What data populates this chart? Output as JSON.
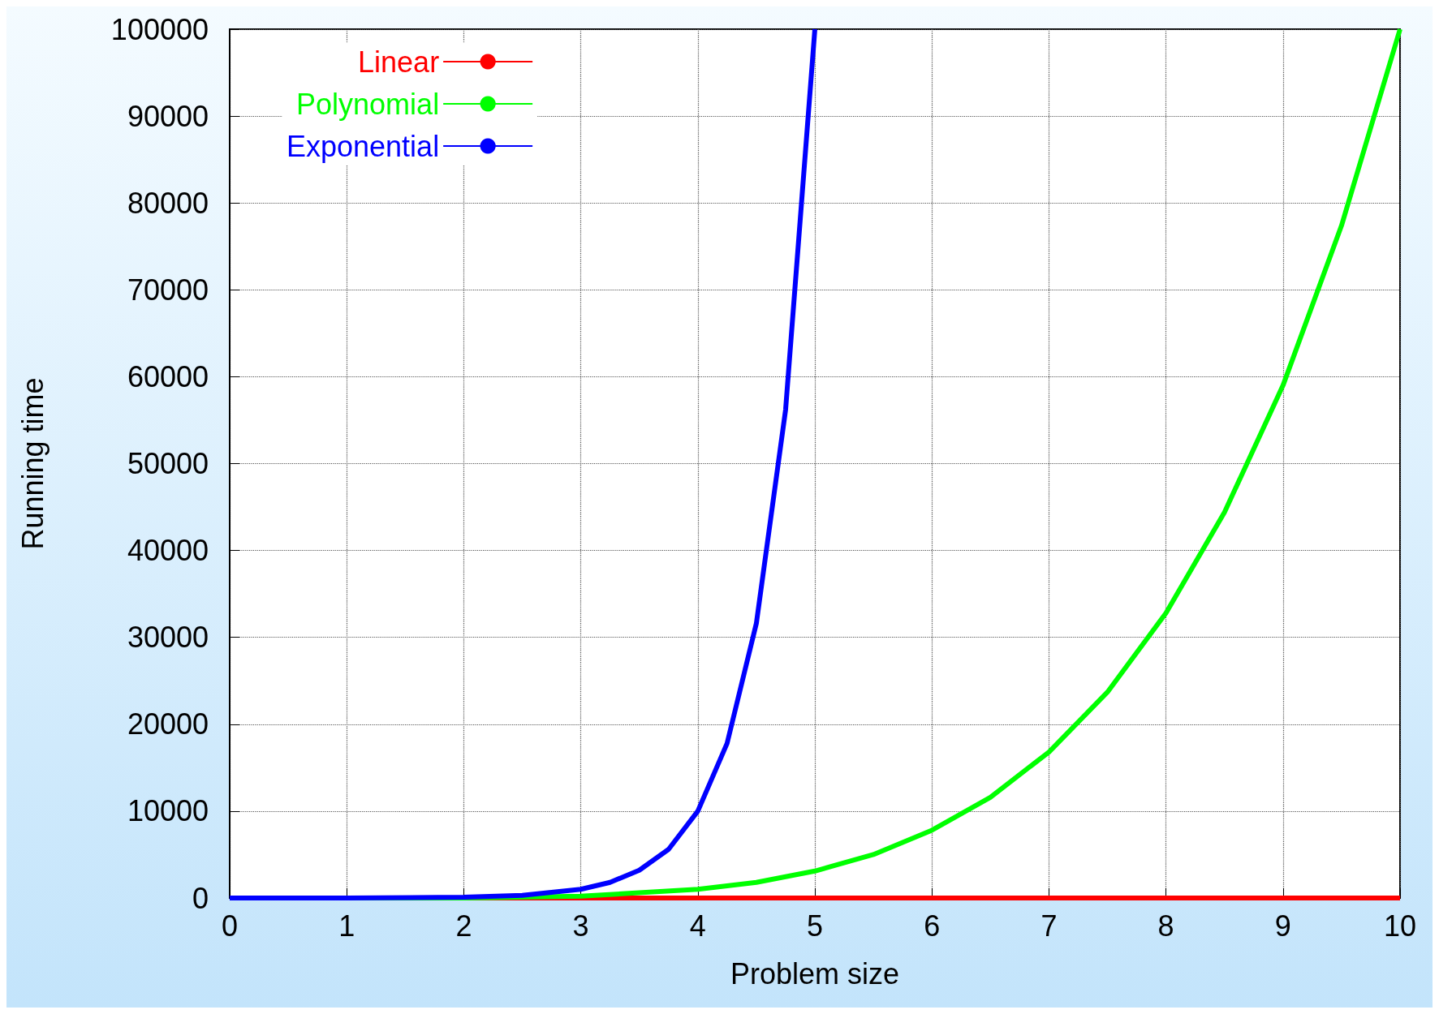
{
  "chart_data": {
    "type": "line",
    "xlabel": "Problem size",
    "ylabel": "Running time",
    "xlim": [
      0,
      10
    ],
    "ylim": [
      0,
      100000
    ],
    "xticks": [
      0,
      1,
      2,
      3,
      4,
      5,
      6,
      7,
      8,
      9,
      10
    ],
    "yticks": [
      0,
      10000,
      20000,
      30000,
      40000,
      50000,
      60000,
      70000,
      80000,
      90000,
      100000
    ],
    "grid": true,
    "legend": "top left",
    "marker": "none",
    "line_style": "solid",
    "series": [
      {
        "name": "Linear",
        "color": "#ff0000",
        "x": [
          0,
          10
        ],
        "values": [
          0,
          0
        ]
      },
      {
        "name": "Polynomial",
        "color": "#00ff00",
        "x": [
          0,
          1,
          2,
          3,
          4,
          4.5,
          5,
          5.5,
          6,
          6.5,
          7,
          7.5,
          8,
          8.5,
          9,
          9.5,
          10
        ],
        "values": [
          0,
          0,
          0,
          200,
          1000,
          1800,
          3100,
          5000,
          7800,
          11600,
          16800,
          23700,
          32800,
          44400,
          59000,
          77400,
          100000
        ]
      },
      {
        "name": "Exponential",
        "color": "#0000ff",
        "x": [
          0,
          1,
          2,
          2.5,
          3,
          3.25,
          3.5,
          3.75,
          4,
          4.25,
          4.5,
          4.75,
          5
        ],
        "values": [
          0,
          0,
          100,
          300,
          1000,
          1800,
          3200,
          5600,
          10000,
          17800,
          31600,
          56200,
          100000
        ]
      }
    ]
  }
}
